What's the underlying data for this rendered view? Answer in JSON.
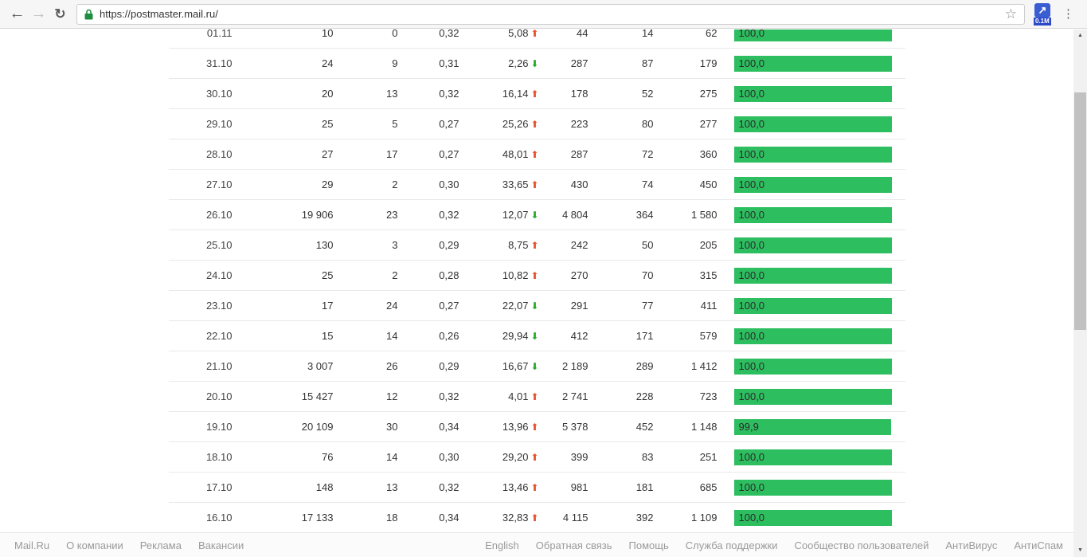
{
  "browser": {
    "url": "https://postmaster.mail.ru/",
    "extension_badge": "0.1M",
    "back_glyph": "←",
    "forward_glyph": "→",
    "reload_glyph": "↻",
    "star_glyph": "☆",
    "ext_glyph": "↗",
    "kebab_glyph": "⋮"
  },
  "colors": {
    "bar_green": "#2dbe60",
    "trend_up_red": "#e8512d",
    "trend_down_green": "#2ca62c"
  },
  "table": {
    "rows": [
      {
        "date": "01.11",
        "c2": "10",
        "c3": "0",
        "c4": "0,32",
        "c5": "5,08",
        "trend": "up",
        "c6": "44",
        "c7": "14",
        "c8": "62",
        "bar_label": "100,0",
        "bar_pct": 100
      },
      {
        "date": "31.10",
        "c2": "24",
        "c3": "9",
        "c4": "0,31",
        "c5": "2,26",
        "trend": "down",
        "c6": "287",
        "c7": "87",
        "c8": "179",
        "bar_label": "100,0",
        "bar_pct": 100
      },
      {
        "date": "30.10",
        "c2": "20",
        "c3": "13",
        "c4": "0,32",
        "c5": "16,14",
        "trend": "up",
        "c6": "178",
        "c7": "52",
        "c8": "275",
        "bar_label": "100,0",
        "bar_pct": 100
      },
      {
        "date": "29.10",
        "c2": "25",
        "c3": "5",
        "c4": "0,27",
        "c5": "25,26",
        "trend": "up",
        "c6": "223",
        "c7": "80",
        "c8": "277",
        "bar_label": "100,0",
        "bar_pct": 100
      },
      {
        "date": "28.10",
        "c2": "27",
        "c3": "17",
        "c4": "0,27",
        "c5": "48,01",
        "trend": "up",
        "c6": "287",
        "c7": "72",
        "c8": "360",
        "bar_label": "100,0",
        "bar_pct": 100
      },
      {
        "date": "27.10",
        "c2": "29",
        "c3": "2",
        "c4": "0,30",
        "c5": "33,65",
        "trend": "up",
        "c6": "430",
        "c7": "74",
        "c8": "450",
        "bar_label": "100,0",
        "bar_pct": 100
      },
      {
        "date": "26.10",
        "c2": "19 906",
        "c3": "23",
        "c4": "0,32",
        "c5": "12,07",
        "trend": "down",
        "c6": "4 804",
        "c7": "364",
        "c8": "1 580",
        "bar_label": "100,0",
        "bar_pct": 100
      },
      {
        "date": "25.10",
        "c2": "130",
        "c3": "3",
        "c4": "0,29",
        "c5": "8,75",
        "trend": "up",
        "c6": "242",
        "c7": "50",
        "c8": "205",
        "bar_label": "100,0",
        "bar_pct": 100
      },
      {
        "date": "24.10",
        "c2": "25",
        "c3": "2",
        "c4": "0,28",
        "c5": "10,82",
        "trend": "up",
        "c6": "270",
        "c7": "70",
        "c8": "315",
        "bar_label": "100,0",
        "bar_pct": 100
      },
      {
        "date": "23.10",
        "c2": "17",
        "c3": "24",
        "c4": "0,27",
        "c5": "22,07",
        "trend": "down",
        "c6": "291",
        "c7": "77",
        "c8": "411",
        "bar_label": "100,0",
        "bar_pct": 100
      },
      {
        "date": "22.10",
        "c2": "15",
        "c3": "14",
        "c4": "0,26",
        "c5": "29,94",
        "trend": "down",
        "c6": "412",
        "c7": "171",
        "c8": "579",
        "bar_label": "100,0",
        "bar_pct": 100
      },
      {
        "date": "21.10",
        "c2": "3 007",
        "c3": "26",
        "c4": "0,29",
        "c5": "16,67",
        "trend": "down",
        "c6": "2 189",
        "c7": "289",
        "c8": "1 412",
        "bar_label": "100,0",
        "bar_pct": 100
      },
      {
        "date": "20.10",
        "c2": "15 427",
        "c3": "12",
        "c4": "0,32",
        "c5": "4,01",
        "trend": "up",
        "c6": "2 741",
        "c7": "228",
        "c8": "723",
        "bar_label": "100,0",
        "bar_pct": 100
      },
      {
        "date": "19.10",
        "c2": "20 109",
        "c3": "30",
        "c4": "0,34",
        "c5": "13,96",
        "trend": "up",
        "c6": "5 378",
        "c7": "452",
        "c8": "1 148",
        "bar_label": "99,9",
        "bar_pct": 99.9
      },
      {
        "date": "18.10",
        "c2": "76",
        "c3": "14",
        "c4": "0,30",
        "c5": "29,20",
        "trend": "up",
        "c6": "399",
        "c7": "83",
        "c8": "251",
        "bar_label": "100,0",
        "bar_pct": 100
      },
      {
        "date": "17.10",
        "c2": "148",
        "c3": "13",
        "c4": "0,32",
        "c5": "13,46",
        "trend": "up",
        "c6": "981",
        "c7": "181",
        "c8": "685",
        "bar_label": "100,0",
        "bar_pct": 100
      },
      {
        "date": "16.10",
        "c2": "17 133",
        "c3": "18",
        "c4": "0,34",
        "c5": "32,83",
        "trend": "up",
        "c6": "4 115",
        "c7": "392",
        "c8": "1 109",
        "bar_label": "100,0",
        "bar_pct": 100
      }
    ]
  },
  "footer": {
    "left_links": [
      "Mail.Ru",
      "О компании",
      "Реклама",
      "Вакансии"
    ],
    "right_links": [
      "English",
      "Обратная связь",
      "Помощь",
      "Служба поддержки",
      "Сообщество пользователей",
      "АнтиВирус",
      "АнтиСпам"
    ]
  },
  "scrollbar": {
    "up_glyph": "▲",
    "down_glyph": "▼"
  }
}
